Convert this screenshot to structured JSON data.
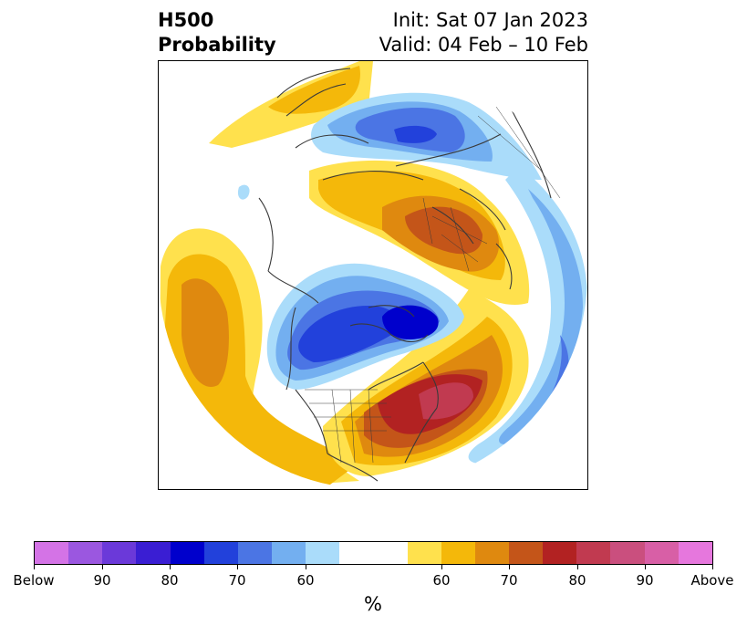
{
  "header": {
    "title": "H500\nProbability",
    "init": "Init: Sat 07 Jan 2023",
    "valid": "Valid: 04 Feb – 10 Feb"
  },
  "colorbar": {
    "colors": [
      "#d473e6",
      "#9b57e0",
      "#6b39d9",
      "#3a1ed3",
      "#0000cc",
      "#2241db",
      "#4b75e4",
      "#73aff0",
      "#aadcfa",
      "#ffffff",
      "#ffe14d",
      "#f4b80a",
      "#df890f",
      "#c45519",
      "#b22222",
      "#c13a50",
      "#ca4f7e",
      "#d85fa6",
      "#e677dd"
    ],
    "tick_labels": [
      "Below",
      "90",
      "80",
      "70",
      "60",
      "60",
      "70",
      "80",
      "90",
      "Above"
    ],
    "unit": "%"
  }
}
